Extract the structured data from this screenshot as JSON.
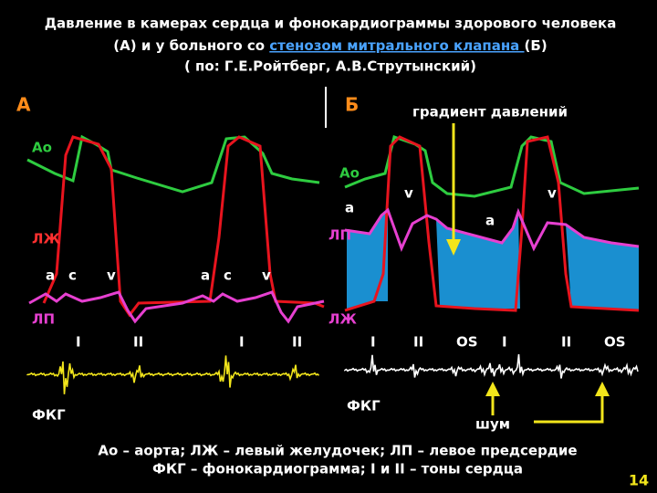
{
  "title": {
    "line1": "Давление в камерах сердца и фонокардиограммы здорового человека",
    "line2": {
      "before": "(А) и у больного со ",
      "link": "стенозом митрального клапана ",
      "after": "(Б)"
    },
    "line3": "( по: Г.Е.Ройтберг, А.В.Струтынский)"
  },
  "panel_a": {
    "label": "А",
    "labels": [
      "Ао",
      "ЛЖ",
      "a",
      "c",
      "v",
      "a",
      "c",
      "v",
      "ЛП",
      "I",
      "II",
      "I",
      "II",
      "ФКГ"
    ]
  },
  "panel_b": {
    "label": "Б",
    "gradient": "градиент давлений",
    "noise": "шум",
    "labels": [
      "Ао",
      "a",
      "v",
      "v",
      "a",
      "ЛП",
      "ЛЖ",
      "I",
      "II",
      "OS",
      "I",
      "II",
      "OS",
      "ФКГ"
    ]
  },
  "legend": [
    "Ао – аорта; ЛЖ – левый желудочек; ЛП – левое предсердие",
    "ФКГ – фонокардиограмма; I и II – тоны сердца"
  ],
  "page_number": "14"
}
